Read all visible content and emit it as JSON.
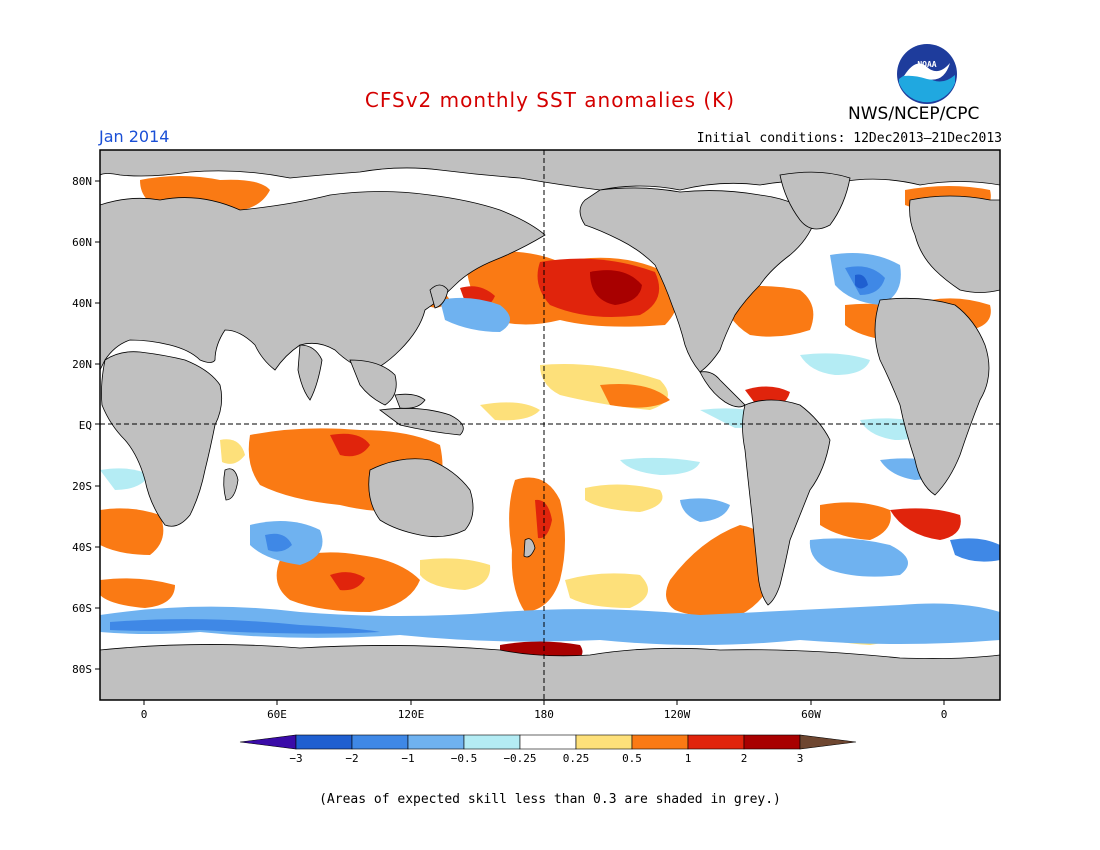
{
  "header": {
    "title": "CFSv2 monthly SST anomalies (K)",
    "month": "Jan 2014",
    "initial_conditions": "Initial conditions: 12Dec2013–21Dec2013",
    "org": "NWS/NCEP/CPC",
    "logo_text": "NOAA"
  },
  "map": {
    "lat_labels": [
      "80N",
      "60N",
      "40N",
      "20N",
      "EQ",
      "20S",
      "40S",
      "60S",
      "80S"
    ],
    "lon_labels": [
      "0",
      "60E",
      "120E",
      "180",
      "120W",
      "60W",
      "0"
    ],
    "land_color": "#c0c0c0",
    "grey_note": "Areas of expected skill less than 0.3 are shaded in grey."
  },
  "colorbar": {
    "tick_labels": [
      "−3",
      "−2",
      "−1",
      "−0.5",
      "−0.25",
      "0.25",
      "0.5",
      "1",
      "2",
      "3"
    ],
    "colors": [
      "#3a0ba8",
      "#1f5fd0",
      "#3f88e6",
      "#6fb2f0",
      "#b4ecf4",
      "#ffffff",
      "#fde07a",
      "#fa7a14",
      "#e0240c",
      "#a80000",
      "#6e4630"
    ]
  },
  "footnote": "(Areas of expected skill less than 0.3 are shaded in grey.)"
}
